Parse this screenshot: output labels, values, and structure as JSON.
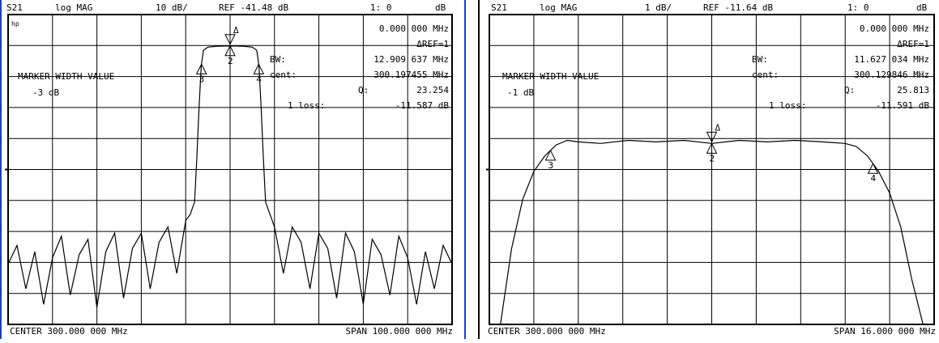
{
  "charts": [
    {
      "header": {
        "param": "S21",
        "format": "log MAG",
        "scale": "10 dB/",
        "ref": "REF -41.48 dB",
        "channel": "1: 0",
        "unit": "dB"
      },
      "hp_logo": "hp",
      "marker_readout": {
        "delta_freq": "0.000 000 MHz",
        "delta_ref": "ΔREF=1",
        "bw_label": "BW:",
        "bw_value": "12.909 637 MHz",
        "cent_label": "cent:",
        "cent_value": "300.197455 MHz",
        "q_label": "Q:",
        "q_value": "23.254",
        "loss_label": "1 loss:",
        "loss_value": "-11.587 dB"
      },
      "mode_text": "MARKER WIDTH VALUE",
      "width_value": "-3 dB",
      "footer": {
        "center": "CENTER  300.000 000 MHz",
        "span": "SPAN  100.000 000 MHz"
      },
      "markers": [
        {
          "label": "Δ",
          "x": 0.0
        },
        {
          "label": "2",
          "x": 0.0
        },
        {
          "label": "3",
          "x": -6.45
        },
        {
          "label": "4",
          "x": 6.45
        }
      ]
    },
    {
      "header": {
        "param": "S21",
        "format": "log MAG",
        "scale": "1 dB/",
        "ref": "REF -11.64 dB",
        "channel": "1: 0",
        "unit": "dB"
      },
      "marker_readout": {
        "delta_freq": "0.000 000 MHz",
        "delta_ref": "ΔREF=1",
        "bw_label": "BW:",
        "bw_value": "11.627 034 MHz",
        "cent_label": "cent:",
        "cent_value": "300.129846 MHz",
        "q_label": "Q:",
        "q_value": "25.813",
        "loss_label": "1 loss:",
        "loss_value": "-11.591 dB"
      },
      "mode_text": "MARKER WIDTH VALUE",
      "width_value": "-1 dB",
      "footer": {
        "center": "CENTER  300.000 000 MHz",
        "span": "SPAN  16.000 000 MHz"
      },
      "markers": [
        {
          "label": "Δ",
          "x": 0.0
        },
        {
          "label": "2",
          "x": 0.0
        },
        {
          "label": "3",
          "x": -5.8
        },
        {
          "label": "4",
          "x": 5.8
        }
      ]
    }
  ],
  "chart_data": [
    {
      "type": "line",
      "title": "S21 log MAG 10 dB/ REF -41.48 dB",
      "xlabel": "",
      "ylabel": "",
      "xlim": [
        -50,
        50
      ],
      "ylim": [
        -101.48,
        -1.48
      ],
      "x_center_MHz": 300.0,
      "grid": true,
      "series": [
        {
          "x": [
            -50,
            -48,
            -46,
            -44,
            -42,
            -40,
            -38,
            -36,
            -34,
            -32,
            -30,
            -28,
            -26,
            -24,
            -22,
            -20,
            -18,
            -16,
            -14,
            -12,
            -10,
            -9,
            -8,
            -7.5,
            -7,
            -6.5,
            -6,
            -5,
            -3,
            0,
            3,
            5,
            6,
            6.5,
            7,
            7.5,
            8,
            9,
            10,
            12,
            14,
            16,
            18,
            20,
            22,
            24,
            26,
            28,
            30,
            32,
            34,
            36,
            38,
            40,
            42,
            44,
            46,
            48,
            50
          ],
          "y": [
            -82,
            -76,
            -90,
            -78,
            -95,
            -80,
            -73,
            -92,
            -79,
            -74,
            -96,
            -78,
            -72,
            -93,
            -77,
            -72,
            -90,
            -75,
            -70,
            -85,
            -68,
            -66,
            -62,
            -48,
            -32,
            -18,
            -13,
            -12,
            -11.7,
            -11.6,
            -11.7,
            -12,
            -13,
            -18,
            -32,
            -48,
            -62,
            -66,
            -70,
            -85,
            -70,
            -75,
            -90,
            -72,
            -77,
            -93,
            -72,
            -78,
            -95,
            -74,
            -79,
            -92,
            -73,
            -80,
            -95,
            -78,
            -90,
            -76,
            -82
          ]
        }
      ]
    },
    {
      "type": "line",
      "title": "S21 log MAG 1 dB/ REF -11.64 dB",
      "xlabel": "",
      "ylabel": "",
      "xlim": [
        -8,
        8
      ],
      "ylim": [
        -17.64,
        -7.64
      ],
      "x_center_MHz": 300.0,
      "grid": true,
      "series": [
        {
          "x": [
            -8,
            -7.6,
            -7.2,
            -6.8,
            -6.4,
            -6.0,
            -5.6,
            -5.2,
            -4.8,
            -4,
            -3,
            -2,
            -1,
            0,
            1,
            2,
            3,
            4,
            4.8,
            5.2,
            5.6,
            6.0,
            6.4,
            6.8,
            7.2,
            7.6,
            8
          ],
          "y": [
            -17.64,
            -17.64,
            -15.2,
            -13.6,
            -12.7,
            -12.2,
            -11.85,
            -11.7,
            -11.75,
            -11.8,
            -11.7,
            -11.75,
            -11.7,
            -11.8,
            -11.7,
            -11.75,
            -11.7,
            -11.75,
            -11.8,
            -11.9,
            -12.2,
            -12.7,
            -13.4,
            -14.5,
            -16.2,
            -17.64,
            -17.64
          ]
        }
      ]
    }
  ]
}
